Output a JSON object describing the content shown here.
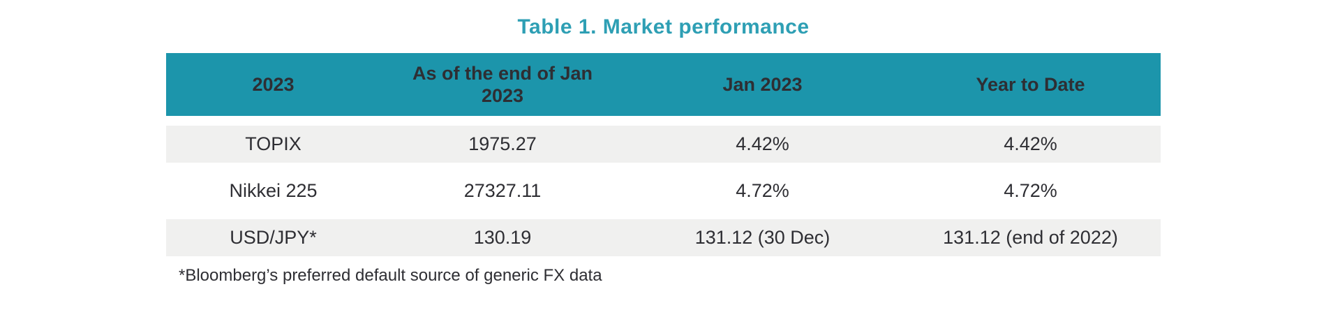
{
  "title": "Table 1. Market performance",
  "colors": {
    "header_bg": "#1C95AB",
    "title_text": "#2E9FB4",
    "alt_row_bg": "#F0F0EF",
    "body_text": "#2E2E33",
    "header_text": "#FFFFFF"
  },
  "chart_data": {
    "type": "table",
    "title": "Table 1. Market performance",
    "columns": [
      "2023",
      "As of the end of Jan 2023",
      "Jan 2023",
      "Year to Date"
    ],
    "rows": [
      [
        "TOPIX",
        "1975.27",
        "4.42%",
        "4.42%"
      ],
      [
        "Nikkei 225",
        "27327.11",
        "4.72%",
        "4.72%"
      ],
      [
        "USD/JPY*",
        "130.19",
        "131.12 (30 Dec)",
        "131.12 (end of 2022)"
      ]
    ]
  },
  "table": {
    "columns": [
      "2023",
      "As of the end of Jan 2023",
      "Jan 2023",
      "Year to Date"
    ],
    "rows": [
      [
        "TOPIX",
        "1975.27",
        "4.42%",
        "4.42%"
      ],
      [
        "Nikkei 225",
        "27327.11",
        "4.72%",
        "4.72%"
      ],
      [
        "USD/JPY*",
        "130.19",
        "131.12 (30 Dec)",
        "131.12 (end of 2022)"
      ]
    ]
  },
  "footnote": "*Bloomberg’s preferred default source of generic FX data"
}
